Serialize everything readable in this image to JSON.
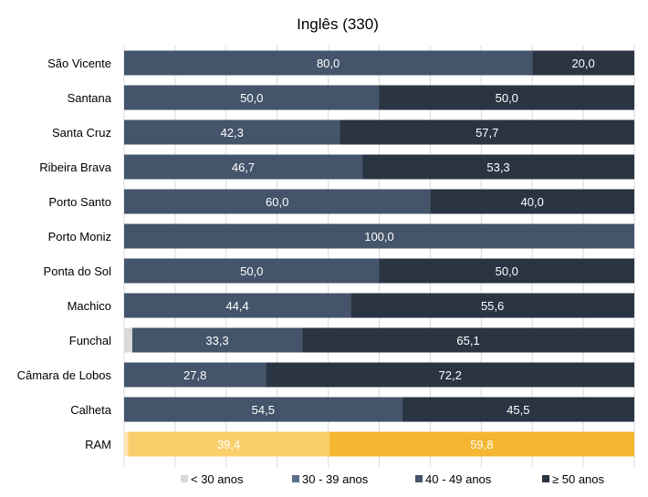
{
  "chart_data": {
    "type": "bar",
    "orientation": "horizontal",
    "stacked": true,
    "title": "Inglês (330)",
    "categories": [
      "São Vicente",
      "Santana",
      "Santa Cruz",
      "Ribeira Brava",
      "Porto Santo",
      "Porto Moniz",
      "Ponta do Sol",
      "Machico",
      "Funchal",
      "Câmara de Lobos",
      "Calheta",
      "RAM"
    ],
    "xlim": [
      0,
      100
    ],
    "grid": true,
    "legend_position": "bottom",
    "series": [
      {
        "name": "< 30 anos",
        "values": [
          0,
          0,
          0,
          0,
          0,
          0,
          0,
          0,
          1.6,
          0,
          0,
          0.8
        ],
        "labels": [
          "",
          "",
          "",
          "",
          "",
          "",
          "",
          "",
          "",
          "",
          "",
          ""
        ]
      },
      {
        "name": "30 - 39 anos",
        "values": [
          0,
          0,
          0,
          0,
          0,
          0,
          0,
          0,
          0,
          0,
          0,
          0
        ],
        "labels": [
          "",
          "",
          "",
          "",
          "",
          "",
          "",
          "",
          "",
          "",
          "",
          ""
        ]
      },
      {
        "name": "40 - 49 anos",
        "values": [
          80.0,
          50.0,
          42.3,
          46.7,
          60.0,
          100.0,
          50.0,
          44.4,
          33.3,
          27.8,
          54.5,
          39.4
        ],
        "labels": [
          "80,0",
          "50,0",
          "42,3",
          "46,7",
          "60,0",
          "100,0",
          "50,0",
          "44,4",
          "33,3",
          "27,8",
          "54,5",
          "39,4"
        ]
      },
      {
        "name": "≥ 50 anos",
        "values": [
          20.0,
          50.0,
          57.7,
          53.3,
          40.0,
          0,
          50.0,
          55.6,
          65.1,
          72.2,
          45.5,
          59.8
        ],
        "labels": [
          "20,0",
          "50,0",
          "57,7",
          "53,3",
          "40,0",
          "",
          "50,0",
          "55,6",
          "65,1",
          "72,2",
          "45,5",
          "59,8"
        ]
      }
    ],
    "colors": {
      "< 30 anos": "#d9d9d9",
      "30 - 39 anos": "#5b6f8c",
      "40 - 49 anos": "#44546a",
      "≥ 50 anos": "#2b3443",
      "ram_segments": [
        "#fce4b3",
        "#f9d57c",
        "#f8cf6a",
        "#f5b731"
      ]
    },
    "highlight_category": "RAM"
  }
}
